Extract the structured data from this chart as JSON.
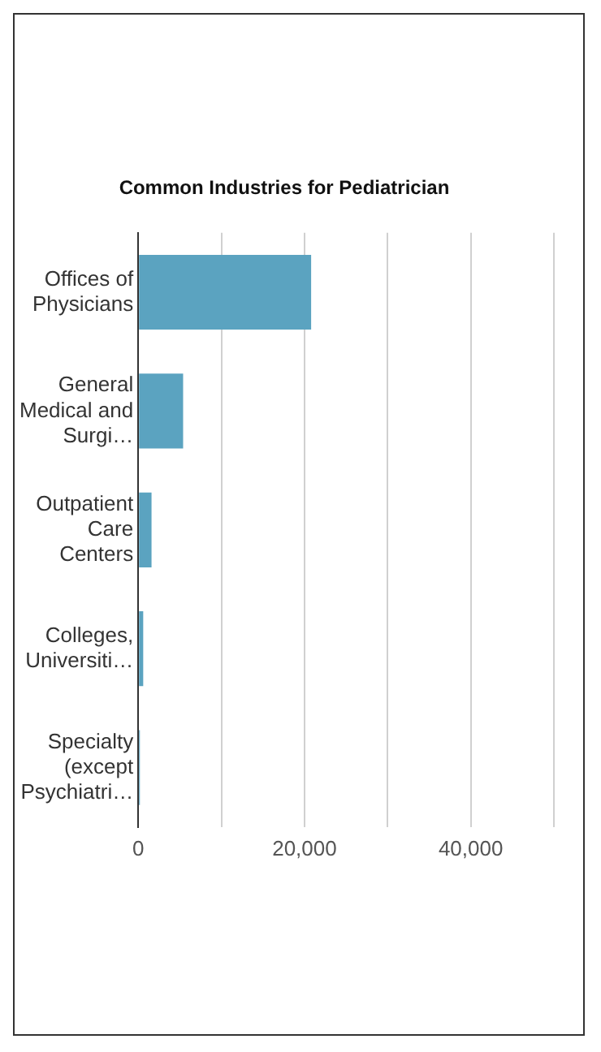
{
  "chart_data": {
    "type": "bar",
    "orientation": "horizontal",
    "title": "Common Industries for Pediatrician",
    "categories": [
      "Offices of Physicians",
      "General Medical and Surgi…",
      "Outpatient Care Centers",
      "Colleges, Universiti…",
      "Specialty (except Psychiatri…"
    ],
    "values": [
      20800,
      5400,
      1600,
      600,
      200
    ],
    "color": "#5ba3c0",
    "xlim": [
      0,
      50000
    ],
    "xticks": [
      0,
      {
        "value": 10000,
        "label": null
      },
      {
        "value": 20000,
        "label": "20,000"
      },
      {
        "value": 30000,
        "label": null
      },
      {
        "value": 40000,
        "label": "40,000"
      },
      {
        "value": 50000,
        "label": null
      }
    ],
    "grid": "x"
  }
}
